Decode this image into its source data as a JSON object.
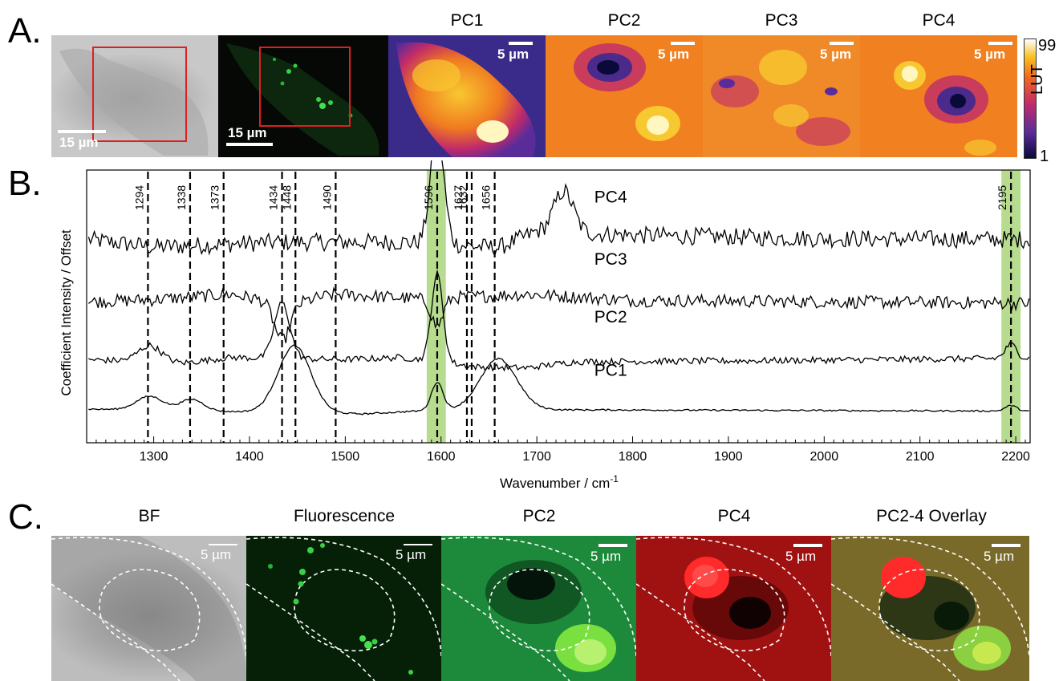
{
  "panels": {
    "a_label": "A.",
    "b_label": "B.",
    "c_label": "C."
  },
  "row_a": {
    "titles": [
      "PC1",
      "PC2",
      "PC3",
      "PC4"
    ],
    "scalebars": [
      "15 µm",
      "15 µm",
      "5 µm",
      "5 µm",
      "5 µm",
      "5 µm"
    ],
    "lut": {
      "max": "99",
      "min": "1",
      "label": "LUT"
    }
  },
  "row_c": {
    "titles": [
      "BF",
      "Fluorescence",
      "PC2",
      "PC4",
      "PC2-4 Overlay"
    ],
    "scalebars": [
      "5 µm",
      "5 µm",
      "5 µm",
      "5 µm",
      "5 µm"
    ]
  },
  "colors": {
    "highlight": "#b7dc8f",
    "lut_stops": [
      "#0a0a3a",
      "#5a2c9a",
      "#c02a6a",
      "#f06a1a",
      "#f8c020",
      "#ffffff"
    ]
  },
  "chart_data": {
    "type": "line",
    "xlabel": "Wavenumber / cm",
    "xlabel_sup": "-1",
    "ylabel": "Coefficient Intensity / Offset",
    "xlim": [
      1230,
      2215
    ],
    "xticks": [
      1300,
      1400,
      1500,
      1600,
      1700,
      1800,
      1900,
      2000,
      2100,
      2200
    ],
    "peak_lines": [
      1294,
      1338,
      1373,
      1434,
      1448,
      1490,
      1596,
      1627,
      1632,
      1656,
      2195
    ],
    "highlight_bands": [
      [
        1585,
        1605
      ],
      [
        2185,
        2205
      ]
    ],
    "series": [
      {
        "name": "PC4",
        "offset": 4.1,
        "noise": 0.38,
        "peaks": [
          [
            1596,
            2.4,
            7
          ],
          [
            1728,
            0.9,
            10
          ]
        ],
        "baseline": [
          [
            1230,
            0.0
          ],
          [
            1300,
            -0.55
          ],
          [
            1430,
            -0.2
          ],
          [
            1560,
            -0.2
          ],
          [
            1660,
            -0.6
          ],
          [
            1700,
            0.55
          ],
          [
            1800,
            0.3
          ],
          [
            2000,
            0.05
          ],
          [
            2215,
            0.0
          ]
        ]
      },
      {
        "name": "PC3",
        "offset": 2.75,
        "noise": 0.28,
        "peaks": [
          [
            1434,
            -0.8,
            8
          ],
          [
            1596,
            -0.6,
            6
          ]
        ],
        "baseline": [
          [
            1230,
            0.0
          ],
          [
            1300,
            0.15
          ],
          [
            1380,
            0.55
          ],
          [
            1440,
            -0.2
          ],
          [
            1490,
            0.55
          ],
          [
            1580,
            0.2
          ],
          [
            1690,
            0.55
          ],
          [
            1800,
            0.1
          ],
          [
            2215,
            -0.1
          ]
        ]
      },
      {
        "name": "PC2",
        "offset": 1.5,
        "noise": 0.14,
        "peaks": [
          [
            1296,
            0.35,
            12
          ],
          [
            1434,
            1.2,
            8
          ],
          [
            1596,
            1.9,
            6
          ],
          [
            2195,
            0.3,
            6
          ]
        ],
        "baseline": [
          [
            1230,
            0.0
          ],
          [
            1330,
            -0.25
          ],
          [
            1380,
            0.15
          ],
          [
            1500,
            0.0
          ],
          [
            1560,
            0.15
          ],
          [
            1640,
            -0.55
          ],
          [
            1690,
            -0.6
          ],
          [
            1740,
            -0.15
          ],
          [
            1900,
            -0.1
          ],
          [
            2215,
            0.1
          ]
        ]
      },
      {
        "name": "PC1",
        "offset": 0.4,
        "noise": 0.035,
        "peaks": [
          [
            1296,
            0.3,
            14
          ],
          [
            1340,
            0.25,
            12
          ],
          [
            1447,
            1.45,
            17
          ],
          [
            1596,
            0.6,
            6
          ],
          [
            1660,
            1.1,
            19
          ],
          [
            2195,
            0.12,
            6
          ]
        ],
        "baseline": [
          [
            1230,
            0.1
          ],
          [
            1520,
            -0.25
          ],
          [
            1600,
            0.05
          ],
          [
            1700,
            0.05
          ],
          [
            2215,
            -0.05
          ]
        ]
      }
    ]
  }
}
